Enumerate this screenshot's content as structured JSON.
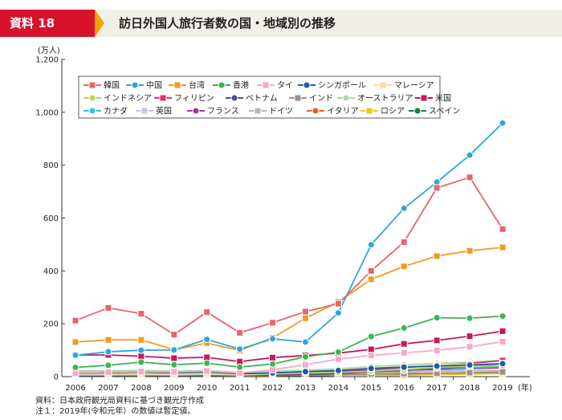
{
  "header": {
    "doc_label": "資料 18",
    "title": "訪日外国人旅行者数の国・地域別の推移"
  },
  "footnotes": {
    "source": "資料：日本政府観光局資料に基づき観光庁作成",
    "note": "注１：2019年(令和元年）の数値は暫定値。"
  },
  "chart_data": {
    "type": "line",
    "title": "訪日外国人旅行者数の国・地域別の推移",
    "ylabel": "(万人)",
    "xlabel_unit": "(年)",
    "x": [
      "2006",
      "2007",
      "2008",
      "2009",
      "2010",
      "2011",
      "2012",
      "2013",
      "2014",
      "2015",
      "2016",
      "2017",
      "2018",
      "2019"
    ],
    "ylim": [
      0,
      1200
    ],
    "yticks": [
      0,
      200,
      400,
      600,
      800,
      "1,000",
      "1,200"
    ],
    "grid": false,
    "legend_position": "top-left (inside plot)",
    "series": [
      {
        "name": "韓国",
        "color": "#e8646b",
        "marker": "square",
        "values": [
          212,
          260,
          238,
          159,
          244,
          166,
          204,
          246,
          276,
          400,
          509,
          714,
          754,
          558
        ]
      },
      {
        "name": "中国",
        "color": "#2aa7e0",
        "marker": "circle",
        "values": [
          81,
          94,
          100,
          101,
          141,
          104,
          143,
          131,
          241,
          499,
          637,
          736,
          838,
          959
        ]
      },
      {
        "name": "台湾",
        "color": "#f39a1e",
        "marker": "square",
        "values": [
          131,
          139,
          139,
          102,
          127,
          99,
          147,
          221,
          283,
          368,
          417,
          456,
          476,
          489
        ]
      },
      {
        "name": "香港",
        "color": "#3cb450",
        "marker": "circle",
        "values": [
          35,
          43,
          55,
          45,
          51,
          36,
          48,
          75,
          93,
          152,
          184,
          223,
          221,
          229
        ]
      },
      {
        "name": "タイ",
        "color": "#f7a8c8",
        "marker": "square",
        "values": [
          13,
          17,
          19,
          18,
          21,
          14,
          26,
          45,
          66,
          80,
          90,
          99,
          113,
          132
        ]
      },
      {
        "name": "シンガポール",
        "color": "#1e5aa8",
        "marker": "circle",
        "values": [
          12,
          15,
          17,
          15,
          18,
          11,
          14,
          19,
          23,
          31,
          36,
          40,
          44,
          49
        ]
      },
      {
        "name": "マレーシア",
        "color": "#fbd6a0",
        "marker": "square",
        "values": [
          9,
          10,
          11,
          9,
          11,
          8,
          13,
          18,
          25,
          31,
          39,
          44,
          47,
          50
        ]
      },
      {
        "name": "インドネシア",
        "color": "#b5d55b",
        "marker": "circle",
        "values": [
          6,
          6,
          7,
          6,
          8,
          6,
          10,
          14,
          16,
          21,
          27,
          35,
          40,
          41
        ]
      },
      {
        "name": "フィリピン",
        "color": "#e0306a",
        "marker": "square",
        "values": [
          7,
          9,
          8,
          7,
          8,
          6,
          9,
          11,
          18,
          27,
          35,
          42,
          50,
          61
        ]
      },
      {
        "name": "ベトナム",
        "color": "#4d4d9c",
        "marker": "circle",
        "values": [
          3,
          4,
          5,
          4,
          4,
          4,
          6,
          8,
          12,
          19,
          23,
          31,
          39,
          50
        ]
      },
      {
        "name": "インド",
        "color": "#9a8f8a",
        "marker": "square",
        "values": [
          6,
          7,
          7,
          6,
          7,
          6,
          7,
          8,
          9,
          10,
          12,
          13,
          15,
          18
        ]
      },
      {
        "name": "オーストラリア",
        "color": "#a9d9a4",
        "marker": "circle",
        "values": [
          20,
          22,
          24,
          21,
          23,
          16,
          21,
          24,
          30,
          38,
          45,
          50,
          55,
          62
        ]
      },
      {
        "name": "米国",
        "color": "#c8185a",
        "marker": "square",
        "values": [
          82,
          82,
          77,
          70,
          73,
          57,
          72,
          80,
          89,
          103,
          124,
          137,
          153,
          172
        ]
      },
      {
        "name": "カナダ",
        "color": "#31c4d4",
        "marker": "circle",
        "values": [
          16,
          17,
          17,
          15,
          15,
          10,
          14,
          15,
          18,
          23,
          27,
          31,
          33,
          38
        ]
      },
      {
        "name": "英国",
        "color": "#c7c5ea",
        "marker": "square",
        "values": [
          22,
          22,
          21,
          18,
          18,
          14,
          17,
          19,
          22,
          26,
          29,
          31,
          33,
          42
        ]
      },
      {
        "name": "フランス",
        "color": "#9b3a96",
        "marker": "circle",
        "values": [
          12,
          14,
          15,
          14,
          15,
          10,
          13,
          15,
          18,
          21,
          25,
          27,
          30,
          34
        ]
      },
      {
        "name": "ドイツ",
        "color": "#b8b8b8",
        "marker": "square",
        "values": [
          11,
          12,
          13,
          11,
          12,
          9,
          11,
          12,
          14,
          16,
          18,
          20,
          22,
          24
        ]
      },
      {
        "name": "イタリア",
        "color": "#ef5a2a",
        "marker": "circle",
        "values": [
          4,
          5,
          5,
          5,
          5,
          3,
          5,
          7,
          8,
          10,
          12,
          13,
          15,
          16
        ]
      },
      {
        "name": "ロシア",
        "color": "#e8c91a",
        "marker": "square",
        "values": [
          4,
          5,
          5,
          4,
          5,
          3,
          5,
          6,
          6,
          5,
          5,
          8,
          9,
          12
        ]
      },
      {
        "name": "スペイン",
        "color": "#1a7a3a",
        "marker": "circle",
        "values": [
          3,
          3,
          4,
          3,
          3,
          2,
          3,
          4,
          5,
          8,
          9,
          10,
          12,
          13
        ]
      }
    ]
  }
}
